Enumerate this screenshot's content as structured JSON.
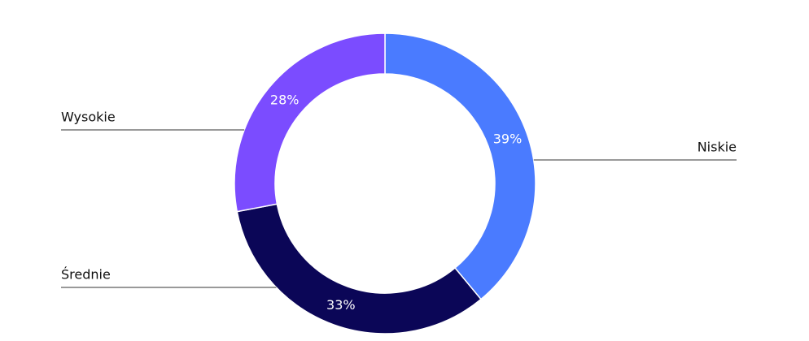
{
  "chart_data": {
    "type": "donut",
    "categories": [
      "Niskie",
      "Średnie",
      "Wysokie"
    ],
    "values": [
      39,
      33,
      28
    ],
    "value_labels": [
      "39%",
      "33%",
      "28%"
    ],
    "colors": [
      "#4a7bff",
      "#0b0657",
      "#7b4cff"
    ]
  }
}
